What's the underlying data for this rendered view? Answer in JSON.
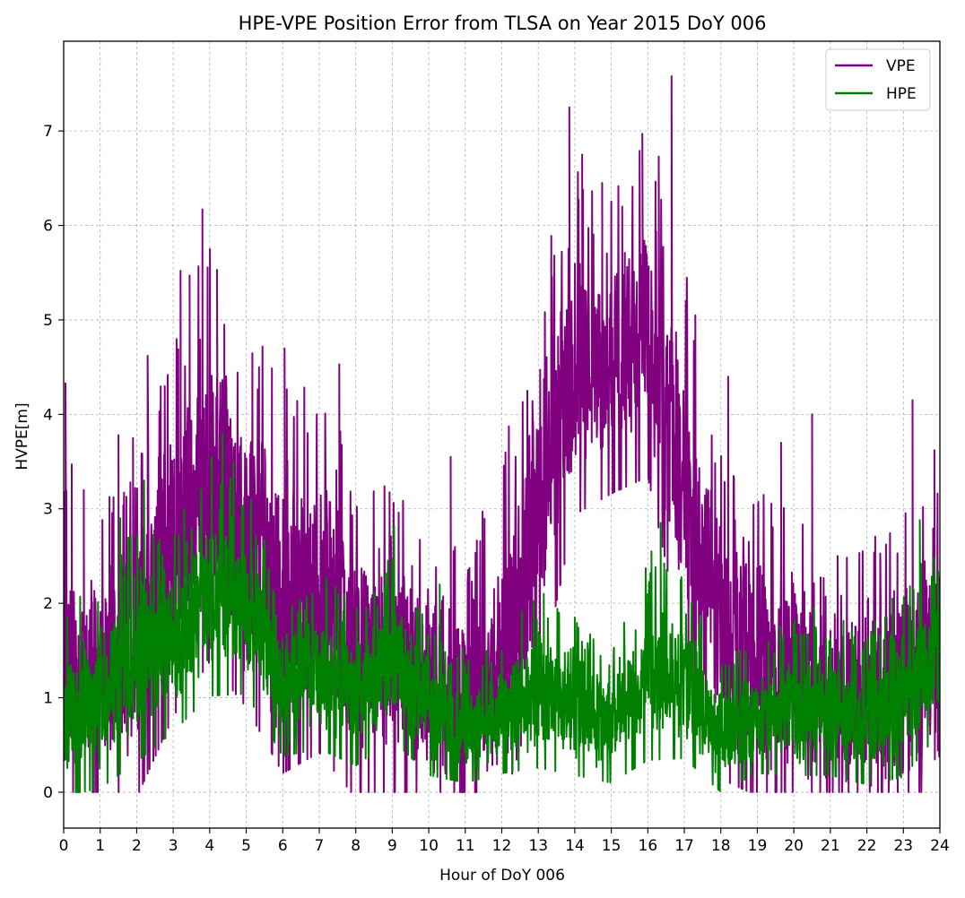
{
  "chart_data": {
    "type": "line",
    "title": "HPE-VPE Position Error from TLSA on Year 2015 DoY 006",
    "xlabel": "Hour of DoY 006",
    "ylabel": "HVPE[m]",
    "xlim": [
      0,
      24
    ],
    "ylim": [
      -0.38,
      7.95
    ],
    "grid": true,
    "legend_position": "top-right",
    "x_ticks": [
      0,
      1,
      2,
      3,
      4,
      5,
      6,
      7,
      8,
      9,
      10,
      11,
      12,
      13,
      14,
      15,
      16,
      17,
      18,
      19,
      20,
      21,
      22,
      23,
      24
    ],
    "y_ticks": [
      0,
      1,
      2,
      3,
      4,
      5,
      6,
      7
    ],
    "sampling_note": "Each series is rendered from hourly envelope values (approximate typical center and spread of the noisy signal).",
    "series": [
      {
        "name": "VPE",
        "color": "#800080",
        "hourly_center": [
          1.3,
          1.2,
          1.5,
          2.6,
          3.3,
          2.7,
          2.0,
          2.1,
          1.5,
          1.4,
          1.1,
          1.1,
          1.4,
          3.0,
          4.5,
          4.6,
          4.9,
          3.3,
          1.7,
          1.4,
          1.3,
          1.0,
          1.0,
          1.2,
          1.5
        ],
        "hourly_spread": [
          1.3,
          1.2,
          1.3,
          1.5,
          1.6,
          1.5,
          1.5,
          1.4,
          1.3,
          1.2,
          1.1,
          1.1,
          1.3,
          1.6,
          1.3,
          1.2,
          1.3,
          1.5,
          1.3,
          1.2,
          1.2,
          1.0,
          1.0,
          1.2,
          1.3
        ],
        "peaks": [
          {
            "x": 0.05,
            "y": 4.33
          },
          {
            "x": 0.22,
            "y": 3.47
          },
          {
            "x": 0.55,
            "y": 3.2
          },
          {
            "x": 1.5,
            "y": 3.78
          },
          {
            "x": 1.9,
            "y": 3.75
          },
          {
            "x": 2.3,
            "y": 4.62
          },
          {
            "x": 2.85,
            "y": 4.38
          },
          {
            "x": 3.2,
            "y": 5.52
          },
          {
            "x": 3.45,
            "y": 5.47
          },
          {
            "x": 3.8,
            "y": 6.17
          },
          {
            "x": 4.2,
            "y": 5.53
          },
          {
            "x": 4.4,
            "y": 4.95
          },
          {
            "x": 5.35,
            "y": 4.5
          },
          {
            "x": 6.05,
            "y": 4.7
          },
          {
            "x": 7.55,
            "y": 4.53
          },
          {
            "x": 10.6,
            "y": 3.55
          },
          {
            "x": 12.7,
            "y": 4.25
          },
          {
            "x": 13.85,
            "y": 7.25
          },
          {
            "x": 14.2,
            "y": 6.75
          },
          {
            "x": 14.75,
            "y": 6.45
          },
          {
            "x": 15.3,
            "y": 6.2
          },
          {
            "x": 15.85,
            "y": 6.97
          },
          {
            "x": 16.3,
            "y": 6.73
          },
          {
            "x": 16.65,
            "y": 7.58
          },
          {
            "x": 17.3,
            "y": 5.05
          },
          {
            "x": 18.2,
            "y": 4.4
          },
          {
            "x": 19.65,
            "y": 3.7
          },
          {
            "x": 20.5,
            "y": 4.0
          },
          {
            "x": 21.2,
            "y": 2.5
          },
          {
            "x": 23.25,
            "y": 4.15
          },
          {
            "x": 23.85,
            "y": 3.62
          }
        ]
      },
      {
        "name": "HPE",
        "color": "#008000",
        "hourly_center": [
          0.8,
          1.0,
          1.4,
          1.6,
          2.1,
          2.0,
          1.1,
          1.3,
          1.0,
          1.4,
          0.9,
          0.7,
          0.8,
          1.1,
          0.9,
          0.7,
          1.3,
          1.2,
          0.6,
          0.8,
          0.9,
          0.9,
          0.8,
          1.0,
          1.6
        ],
        "hourly_spread": [
          0.7,
          0.8,
          0.9,
          0.8,
          0.9,
          0.8,
          0.6,
          0.7,
          0.6,
          0.7,
          0.6,
          0.5,
          0.5,
          0.7,
          0.6,
          0.5,
          0.8,
          0.7,
          0.5,
          0.5,
          0.6,
          0.6,
          0.6,
          0.7,
          0.8
        ],
        "peaks": [
          {
            "x": 0.1,
            "y": 1.85
          },
          {
            "x": 1.55,
            "y": 2.9
          },
          {
            "x": 2.2,
            "y": 3.3
          },
          {
            "x": 3.3,
            "y": 3.0
          },
          {
            "x": 4.05,
            "y": 3.55
          },
          {
            "x": 4.35,
            "y": 3.8
          },
          {
            "x": 4.65,
            "y": 3.48
          },
          {
            "x": 7.2,
            "y": 2.2
          },
          {
            "x": 9.05,
            "y": 2.82
          },
          {
            "x": 10.3,
            "y": 2.2
          },
          {
            "x": 13.15,
            "y": 2.1
          },
          {
            "x": 14.0,
            "y": 1.85
          },
          {
            "x": 16.1,
            "y": 2.55
          },
          {
            "x": 16.35,
            "y": 2.85
          },
          {
            "x": 16.9,
            "y": 2.25
          },
          {
            "x": 20.55,
            "y": 1.95
          },
          {
            "x": 22.7,
            "y": 2.05
          },
          {
            "x": 23.45,
            "y": 2.88
          },
          {
            "x": 23.85,
            "y": 2.48
          }
        ]
      }
    ]
  }
}
